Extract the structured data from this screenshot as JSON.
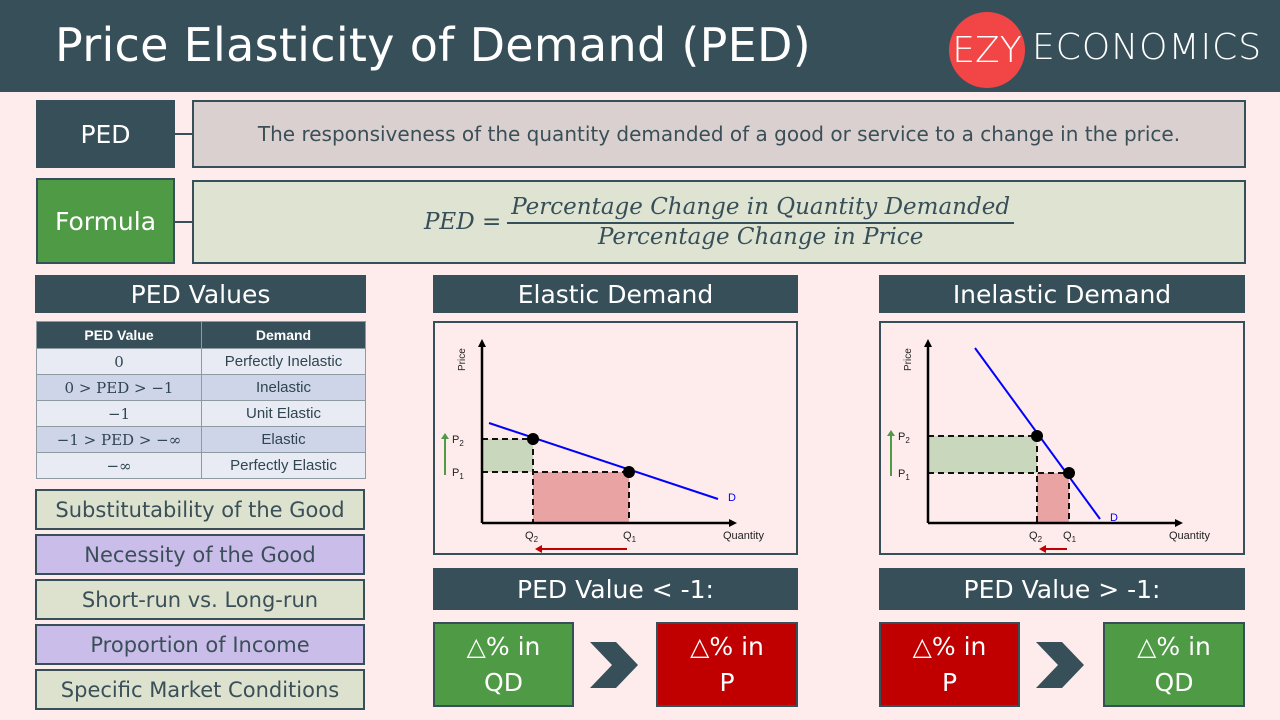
{
  "header": {
    "title": "Price Elasticity of Demand (PED)",
    "logo_circle": "EZY",
    "logo_text": "ECONOMICS"
  },
  "definition": {
    "label": "PED",
    "text": "The responsiveness of the quantity demanded of a good or service to a change in the price."
  },
  "formula": {
    "label": "Formula",
    "lhs": "PED =",
    "numerator": "Percentage Change in Quantity Demanded",
    "denominator": "Percentage Change in Price"
  },
  "ped_values": {
    "title": "PED Values",
    "headers": [
      "PED Value",
      "Demand"
    ],
    "rows": [
      [
        "0",
        "Perfectly Inelastic"
      ],
      [
        "0 > PED > −1",
        "Inelastic"
      ],
      [
        "−1",
        "Unit Elastic"
      ],
      [
        "−1 > PED > −∞",
        "Elastic"
      ],
      [
        "−∞",
        "Perfectly Elastic"
      ]
    ]
  },
  "factors": [
    "Substitutability of the Good",
    "Necessity of the Good",
    "Short-run vs. Long-run",
    "Proportion of Income",
    "Specific Market Conditions"
  ],
  "elastic": {
    "title": "Elastic Demand",
    "y_label": "Price",
    "x_label": "Quantity",
    "curve_label": "D",
    "p2": "P",
    "p2_sub": "2",
    "p1": "P",
    "p1_sub": "1",
    "q2": "Q",
    "q2_sub": "2",
    "q1": "Q",
    "q1_sub": "1",
    "rule": "PED Value < -1:",
    "left_box": [
      "△% in",
      "QD"
    ],
    "right_box": [
      "△% in",
      "P"
    ]
  },
  "inelastic": {
    "title": "Inelastic Demand",
    "y_label": "Price",
    "x_label": "Quantity",
    "curve_label": "D",
    "p2": "P",
    "p2_sub": "2",
    "p1": "P",
    "p1_sub": "1",
    "q2": "Q",
    "q2_sub": "2",
    "q1": "Q",
    "q1_sub": "1",
    "rule": "PED Value > -1:",
    "left_box": [
      "△% in",
      "P"
    ],
    "right_box": [
      "△% in",
      "QD"
    ]
  },
  "colors": {
    "dark": "#374f59",
    "logo": "#f24646",
    "green": "#4f9a45",
    "red": "#c00000",
    "curve": "#0000ff",
    "green_area": "#c9d8bc",
    "red_area": "#eaa3a3"
  }
}
